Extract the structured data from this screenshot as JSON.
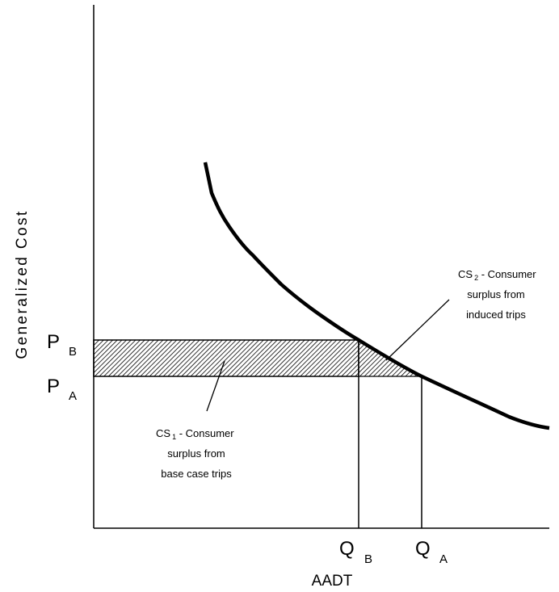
{
  "axes": {
    "y_label": "Generalized Cost",
    "x_label": "AADT"
  },
  "price_labels": {
    "p_b": {
      "main": "P",
      "sub": "B"
    },
    "p_a": {
      "main": "P",
      "sub": "A"
    }
  },
  "quantity_labels": {
    "q_b": {
      "main": "Q",
      "sub": "B"
    },
    "q_a": {
      "main": "Q",
      "sub": "A"
    }
  },
  "callouts": {
    "cs1": {
      "prefix": "CS",
      "sub": "1",
      "line1_rest": " - Consumer",
      "line2": "surplus from",
      "line3": "base case trips"
    },
    "cs2": {
      "prefix": "CS",
      "sub": "2",
      "line1_rest": " - Consumer",
      "line2": "surplus from",
      "line3": "induced trips"
    }
  },
  "colors": {
    "ink": "#000000",
    "hatch_bg": "#ffffff"
  }
}
